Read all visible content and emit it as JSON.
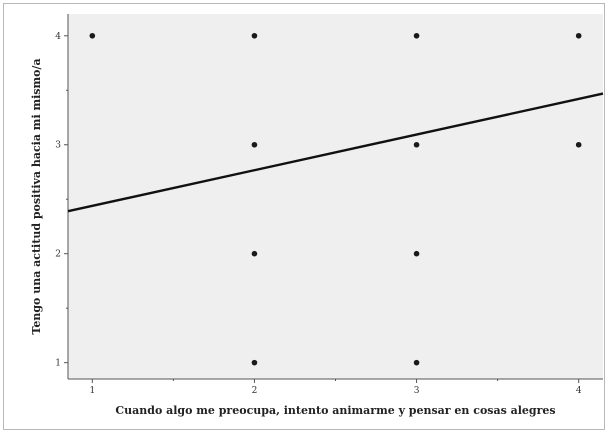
{
  "chart_data": {
    "type": "scatter",
    "xlabel": "Cuando algo me preocupa, intento animarme y pensar en cosas alegres",
    "ylabel": "Tengo una actitud positiva hacia mi mismo/a",
    "xlim": [
      0.85,
      4.15
    ],
    "ylim": [
      0.85,
      4.2
    ],
    "x_ticks": [
      1,
      2,
      3,
      4
    ],
    "y_ticks": [
      1,
      2,
      3,
      4
    ],
    "grid": false,
    "points": [
      {
        "x": 1,
        "y": 4
      },
      {
        "x": 2,
        "y": 4
      },
      {
        "x": 2,
        "y": 3
      },
      {
        "x": 2,
        "y": 2
      },
      {
        "x": 2,
        "y": 1
      },
      {
        "x": 3,
        "y": 4
      },
      {
        "x": 3,
        "y": 3
      },
      {
        "x": 3,
        "y": 2
      },
      {
        "x": 3,
        "y": 1
      },
      {
        "x": 4,
        "y": 4
      },
      {
        "x": 4,
        "y": 3
      }
    ],
    "fit_line": {
      "x": [
        0.85,
        4.15
      ],
      "y": [
        2.39,
        3.47
      ]
    },
    "colors": {
      "plot_bg": "#efefef",
      "point": "#1a1a1a",
      "line": "#111111",
      "axis": "#555555"
    }
  }
}
